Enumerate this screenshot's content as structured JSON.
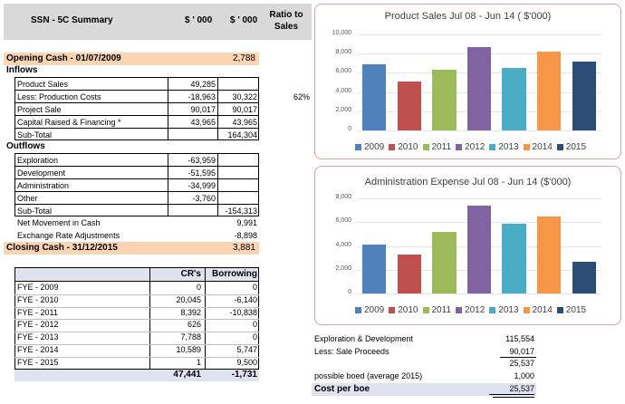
{
  "header": {
    "title": "SSN - 5C Summary",
    "col1": "$ ' 000",
    "col2": "$ ' 000",
    "col3": "Ratio to Sales"
  },
  "opening": {
    "label": "Opening Cash -  01/07/2009",
    "value": "2,788"
  },
  "inflows": {
    "heading": "Inflows",
    "rows": [
      {
        "label": "Product Sales",
        "c1": "49,285",
        "c2": "",
        "c3": ""
      },
      {
        "label": "Less: Production Costs",
        "c1": "-18,963",
        "c2": "30,322",
        "c3": "62%"
      },
      {
        "label": "Project Sale",
        "c1": "90,017",
        "c2": "90,017",
        "c3": ""
      },
      {
        "label": "Capital Raised & Financing *",
        "c1": "43,965",
        "c2": "43,965",
        "c3": ""
      },
      {
        "label": "Sub-Total",
        "c1": "",
        "c2": "164,304",
        "c3": ""
      }
    ]
  },
  "outflows": {
    "heading": "Outflows",
    "rows": [
      {
        "label": "Exploration",
        "c1": "-63,959",
        "c2": ""
      },
      {
        "label": "Development",
        "c1": "-51,595",
        "c2": ""
      },
      {
        "label": "Administration",
        "c1": "-34,999",
        "c2": ""
      },
      {
        "label": "Other",
        "c1": "-3,760",
        "c2": ""
      },
      {
        "label": "Sub-Total",
        "c1": "",
        "c2": "-154,313"
      }
    ]
  },
  "net_movement": {
    "label": "Net Movement in Cash",
    "value": "9,991"
  },
  "fx": {
    "label": "Exchange Rate Adjustments",
    "value": "-8,898"
  },
  "closing": {
    "label": "Closing Cash - 31/12/2015",
    "value": "3,881"
  },
  "fye_table": {
    "col1": "CR's",
    "col2": "Borrowing",
    "rows": [
      {
        "label": "FYE - 2009",
        "cr": "0",
        "bor": "0"
      },
      {
        "label": "FYE - 2010",
        "cr": "20,045",
        "bor": "-6,140"
      },
      {
        "label": "FYE - 2011",
        "cr": "8,392",
        "bor": "-10,838"
      },
      {
        "label": "FYE - 2012",
        "cr": "626",
        "bor": "0"
      },
      {
        "label": "FYE - 2013",
        "cr": "7,788",
        "bor": "0"
      },
      {
        "label": "FYE - 2014",
        "cr": "10,589",
        "bor": "5,747"
      },
      {
        "label": "FYE - 2015",
        "cr": "1",
        "bor": "9,500"
      }
    ],
    "total_cr": "47,441",
    "total_bor": "-1,731"
  },
  "boe": {
    "rows": [
      {
        "label": "Exploration & Development",
        "value": "115,554"
      },
      {
        "label": "Less: Sale Proceeds",
        "value": "90,017"
      },
      {
        "label": "",
        "value": "25,537"
      },
      {
        "label": "possible boed (average 2015)",
        "value": "1,000"
      }
    ],
    "cost_label": "Cost per boe",
    "cost_value": "25,537"
  },
  "colors": {
    "2009": "#4f81bd",
    "2010": "#c0504d",
    "2011": "#9bbb59",
    "2012": "#8064a2",
    "2013": "#4bacc6",
    "2014": "#f79646",
    "2015": "#2c4d75"
  },
  "chart_data": [
    {
      "type": "bar",
      "title": "Product Sales Jul 08 - Jun 14 ( $'000)",
      "categories": [
        "2009",
        "2010",
        "2011",
        "2012",
        "2013",
        "2014",
        "2015"
      ],
      "values": [
        6900,
        5050,
        6350,
        8700,
        6550,
        8250,
        7150
      ],
      "ylim": [
        0,
        10000
      ],
      "yticks": [
        "10,000",
        "8,000",
        "6,000",
        "4,000",
        "2,000",
        "0"
      ],
      "legend": "bottom"
    },
    {
      "type": "bar",
      "title": "Administration Expense Jul 08 - Jun 14 ($'000)",
      "categories": [
        "2009",
        "2010",
        "2011",
        "2012",
        "2013",
        "2014",
        "2015"
      ],
      "values": [
        4100,
        3250,
        5150,
        7400,
        5900,
        6450,
        2650
      ],
      "ylim": [
        0,
        8000
      ],
      "yticks": [
        "8,000",
        "6,000",
        "4,000",
        "2,000",
        "0"
      ],
      "legend": "bottom"
    }
  ]
}
